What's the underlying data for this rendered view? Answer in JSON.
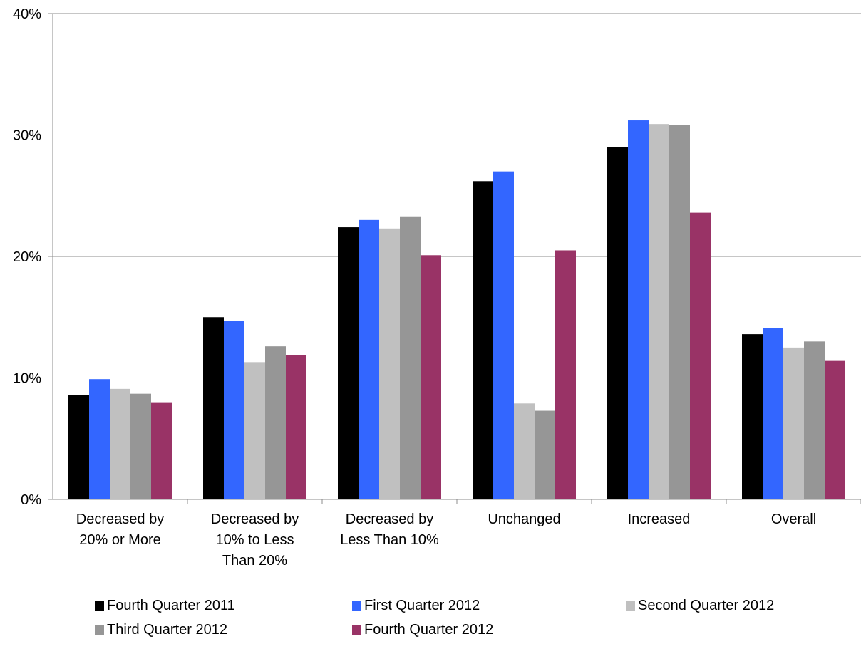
{
  "chart_data": {
    "type": "bar",
    "categories": [
      [
        "Decreased by",
        "20% or More"
      ],
      [
        "Decreased by",
        "10% to Less",
        "Than 20%"
      ],
      [
        "Decreased by",
        "Less Than 10%"
      ],
      [
        "Unchanged"
      ],
      [
        "Increased"
      ],
      [
        "Overall"
      ]
    ],
    "series": [
      {
        "name": "Fourth Quarter 2011",
        "color": "#000000",
        "values": [
          8.6,
          15.0,
          22.4,
          26.2,
          29.0,
          13.6
        ]
      },
      {
        "name": "First Quarter 2012",
        "color": "#3366FF",
        "values": [
          9.9,
          14.7,
          23.0,
          27.0,
          31.2,
          14.1
        ]
      },
      {
        "name": "Second Quarter 2012",
        "color": "#C0C0C0",
        "values": [
          9.1,
          11.3,
          22.3,
          7.9,
          30.9,
          12.5
        ]
      },
      {
        "name": "Third Quarter 2012",
        "color": "#969696",
        "values": [
          8.7,
          12.6,
          23.3,
          7.3,
          30.8,
          13.0
        ]
      },
      {
        "name": "Fourth Quarter 2012",
        "color": "#993366",
        "values": [
          8.0,
          11.9,
          20.1,
          20.5,
          23.6,
          11.4
        ]
      }
    ],
    "ylim": [
      0,
      40
    ],
    "yticks": [
      0,
      10,
      20,
      30,
      40
    ],
    "ytick_labels": [
      "0%",
      "10%",
      "20%",
      "30%",
      "40%"
    ],
    "grid": true,
    "legend_position": "bottom"
  }
}
